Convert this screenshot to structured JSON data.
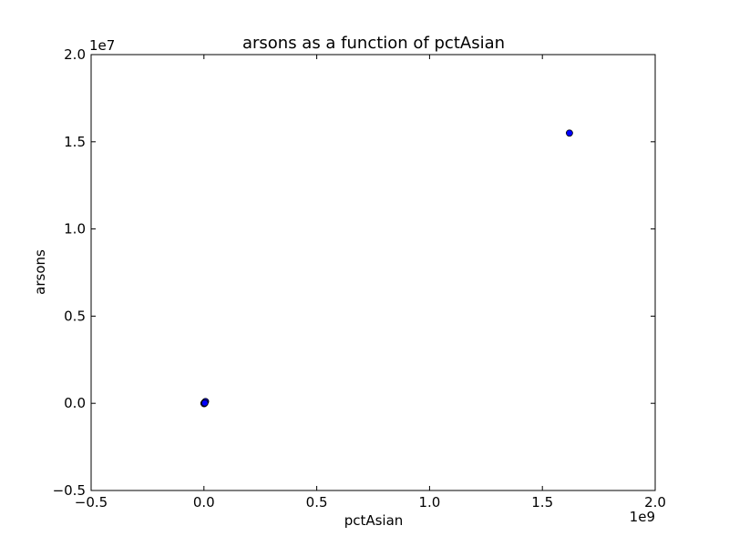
{
  "chart_data": {
    "type": "scatter",
    "title": "arsons as a function of pctAsian",
    "xlabel": "pctAsian",
    "ylabel": "arsons",
    "xlim": [
      -500000000,
      2000000000
    ],
    "ylim": [
      -5000000,
      20000000
    ],
    "x_ticks": [
      -500000000,
      0,
      500000000,
      1000000000,
      1500000000,
      2000000000
    ],
    "x_tick_labels": [
      "−0.5",
      "0.0",
      "0.5",
      "1.0",
      "1.5",
      "2.0"
    ],
    "y_ticks": [
      -5000000,
      0,
      5000000,
      10000000,
      15000000,
      20000000
    ],
    "y_tick_labels": [
      "−0.5",
      "0.0",
      "0.5",
      "1.0",
      "1.5",
      "2.0"
    ],
    "x_offset_label": "1e9",
    "y_offset_label": "1e7",
    "grid": false,
    "marker_color": "#0000ff",
    "marker_edge_color": "#000000",
    "points": [
      {
        "x": 0,
        "y": 0
      },
      {
        "x": 1000000,
        "y": 10000
      },
      {
        "x": 2000000,
        "y": 30000
      },
      {
        "x": 3000000,
        "y": 50000
      },
      {
        "x": 5000000,
        "y": 80000
      },
      {
        "x": 7000000,
        "y": 100000
      },
      {
        "x": 1000000,
        "y": -20000
      },
      {
        "x": 4000000,
        "y": 20000
      },
      {
        "x": 1620000000,
        "y": 15500000
      }
    ]
  }
}
